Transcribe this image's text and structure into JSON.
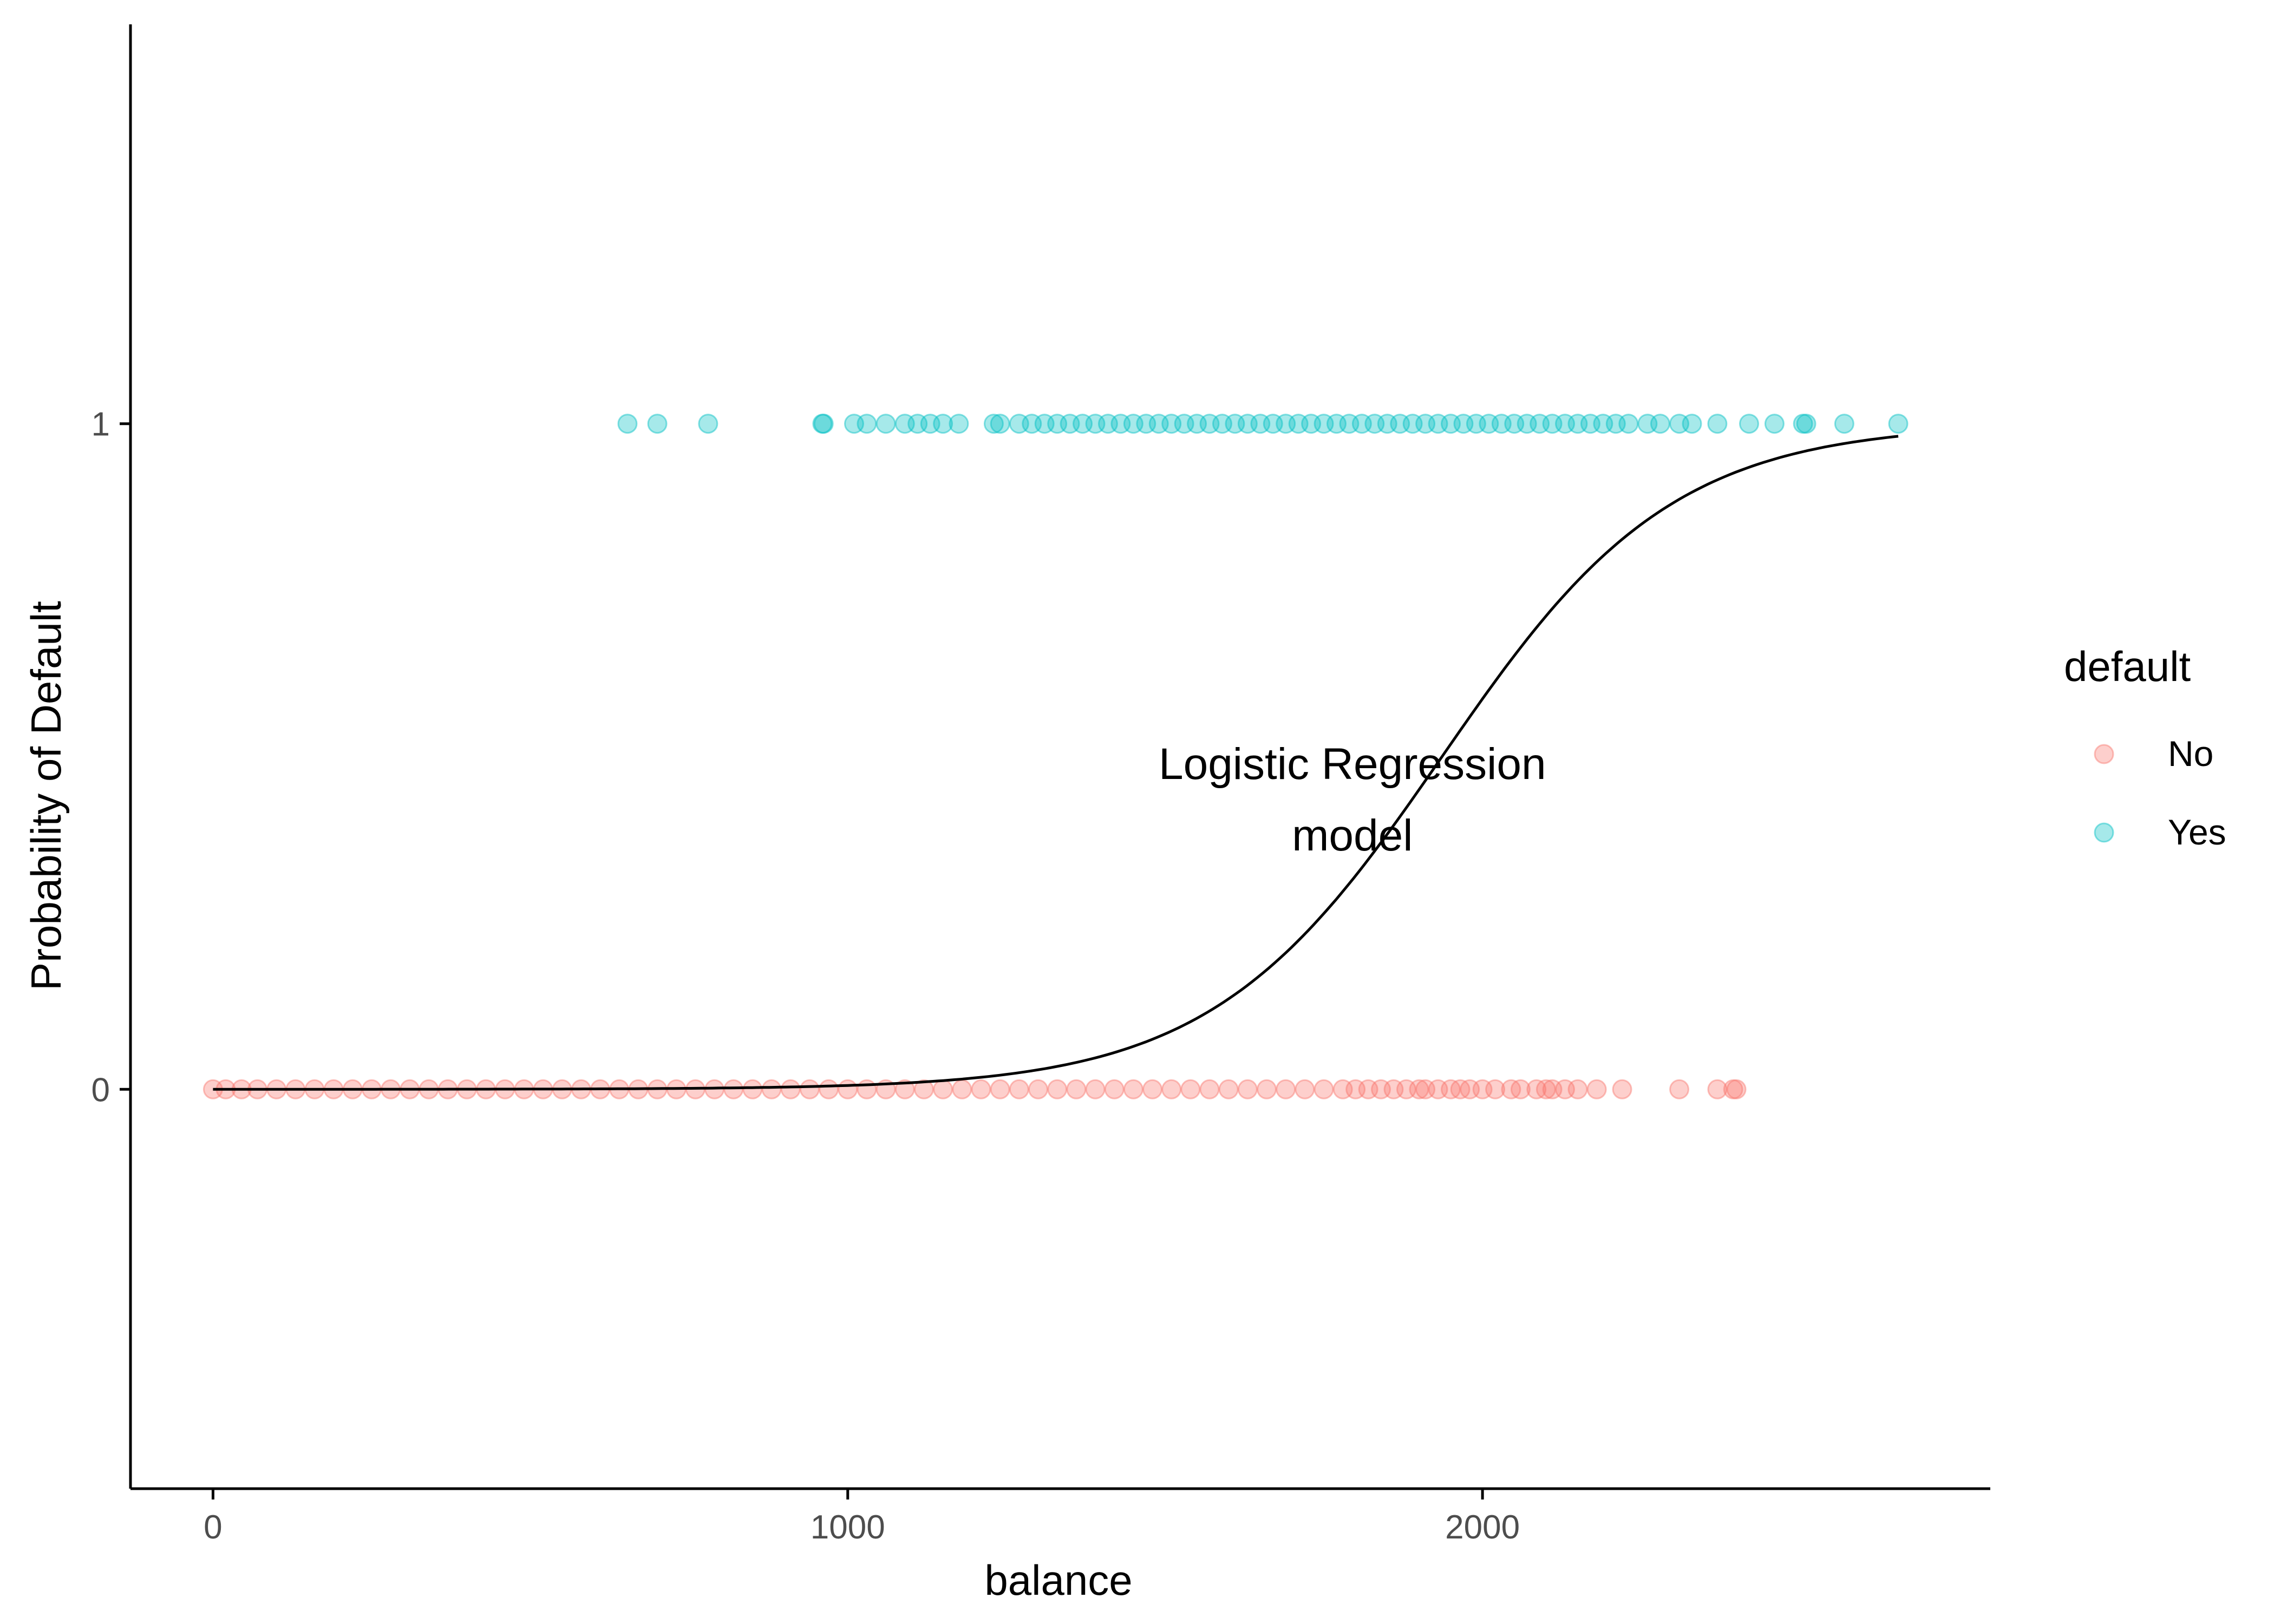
{
  "chart_data": {
    "type": "scatter",
    "xlabel": "balance",
    "ylabel": "Probability of Default",
    "xlim": [
      -130,
      2800
    ],
    "ylim": [
      -0.6,
      1.6
    ],
    "x_ticks": [
      0,
      1000,
      2000
    ],
    "x_tick_labels": [
      "0",
      "1000",
      "2000"
    ],
    "y_ticks": [
      0,
      1
    ],
    "y_tick_labels": [
      "0",
      "1"
    ],
    "grid": false,
    "legend": {
      "title": "default",
      "placement": "right",
      "entries": [
        {
          "label": "No",
          "color": "#F8766D"
        },
        {
          "label": "Yes",
          "color": "#00BFC4"
        }
      ]
    },
    "series": [
      {
        "name": "No",
        "y": 0,
        "color": "#F8766D",
        "x": [
          0,
          20,
          45,
          70,
          100,
          130,
          160,
          190,
          220,
          250,
          280,
          310,
          340,
          370,
          400,
          430,
          460,
          490,
          520,
          550,
          580,
          610,
          640,
          670,
          700,
          730,
          760,
          790,
          820,
          850,
          880,
          910,
          940,
          970,
          1000,
          1030,
          1060,
          1090,
          1120,
          1150,
          1180,
          1210,
          1240,
          1270,
          1300,
          1330,
          1360,
          1390,
          1420,
          1450,
          1480,
          1510,
          1540,
          1570,
          1600,
          1630,
          1660,
          1690,
          1720,
          1750,
          1780,
          1800,
          1820,
          1840,
          1860,
          1880,
          1900,
          1910,
          1930,
          1950,
          1965,
          1980,
          2000,
          2020,
          2045,
          2060,
          2085,
          2100,
          2110,
          2130,
          2150,
          2180,
          2220,
          2310,
          2370,
          2395,
          2400
        ]
      },
      {
        "name": "Yes",
        "y": 1,
        "color": "#00BFC4",
        "x": [
          653,
          700,
          780,
          960,
          962,
          1010,
          1030,
          1060,
          1090,
          1110,
          1130,
          1150,
          1175,
          1230,
          1240,
          1270,
          1290,
          1310,
          1330,
          1350,
          1370,
          1390,
          1410,
          1430,
          1450,
          1470,
          1490,
          1510,
          1530,
          1550,
          1570,
          1590,
          1610,
          1630,
          1650,
          1670,
          1690,
          1710,
          1730,
          1750,
          1770,
          1790,
          1810,
          1830,
          1850,
          1870,
          1890,
          1910,
          1930,
          1950,
          1970,
          1990,
          2010,
          2030,
          2050,
          2070,
          2090,
          2110,
          2130,
          2150,
          2170,
          2190,
          2210,
          2230,
          2260,
          2280,
          2310,
          2330,
          2370,
          2420,
          2460,
          2505,
          2510,
          2570,
          2655
        ]
      }
    ],
    "curve": {
      "name": "Logistic Regression model",
      "intercept": -10.65,
      "slope": 0.0055,
      "x_range": [
        0,
        2655
      ]
    },
    "annotation": {
      "lines": [
        "Logistic Regression",
        "model"
      ],
      "x": 1795,
      "y": 0.45
    }
  }
}
